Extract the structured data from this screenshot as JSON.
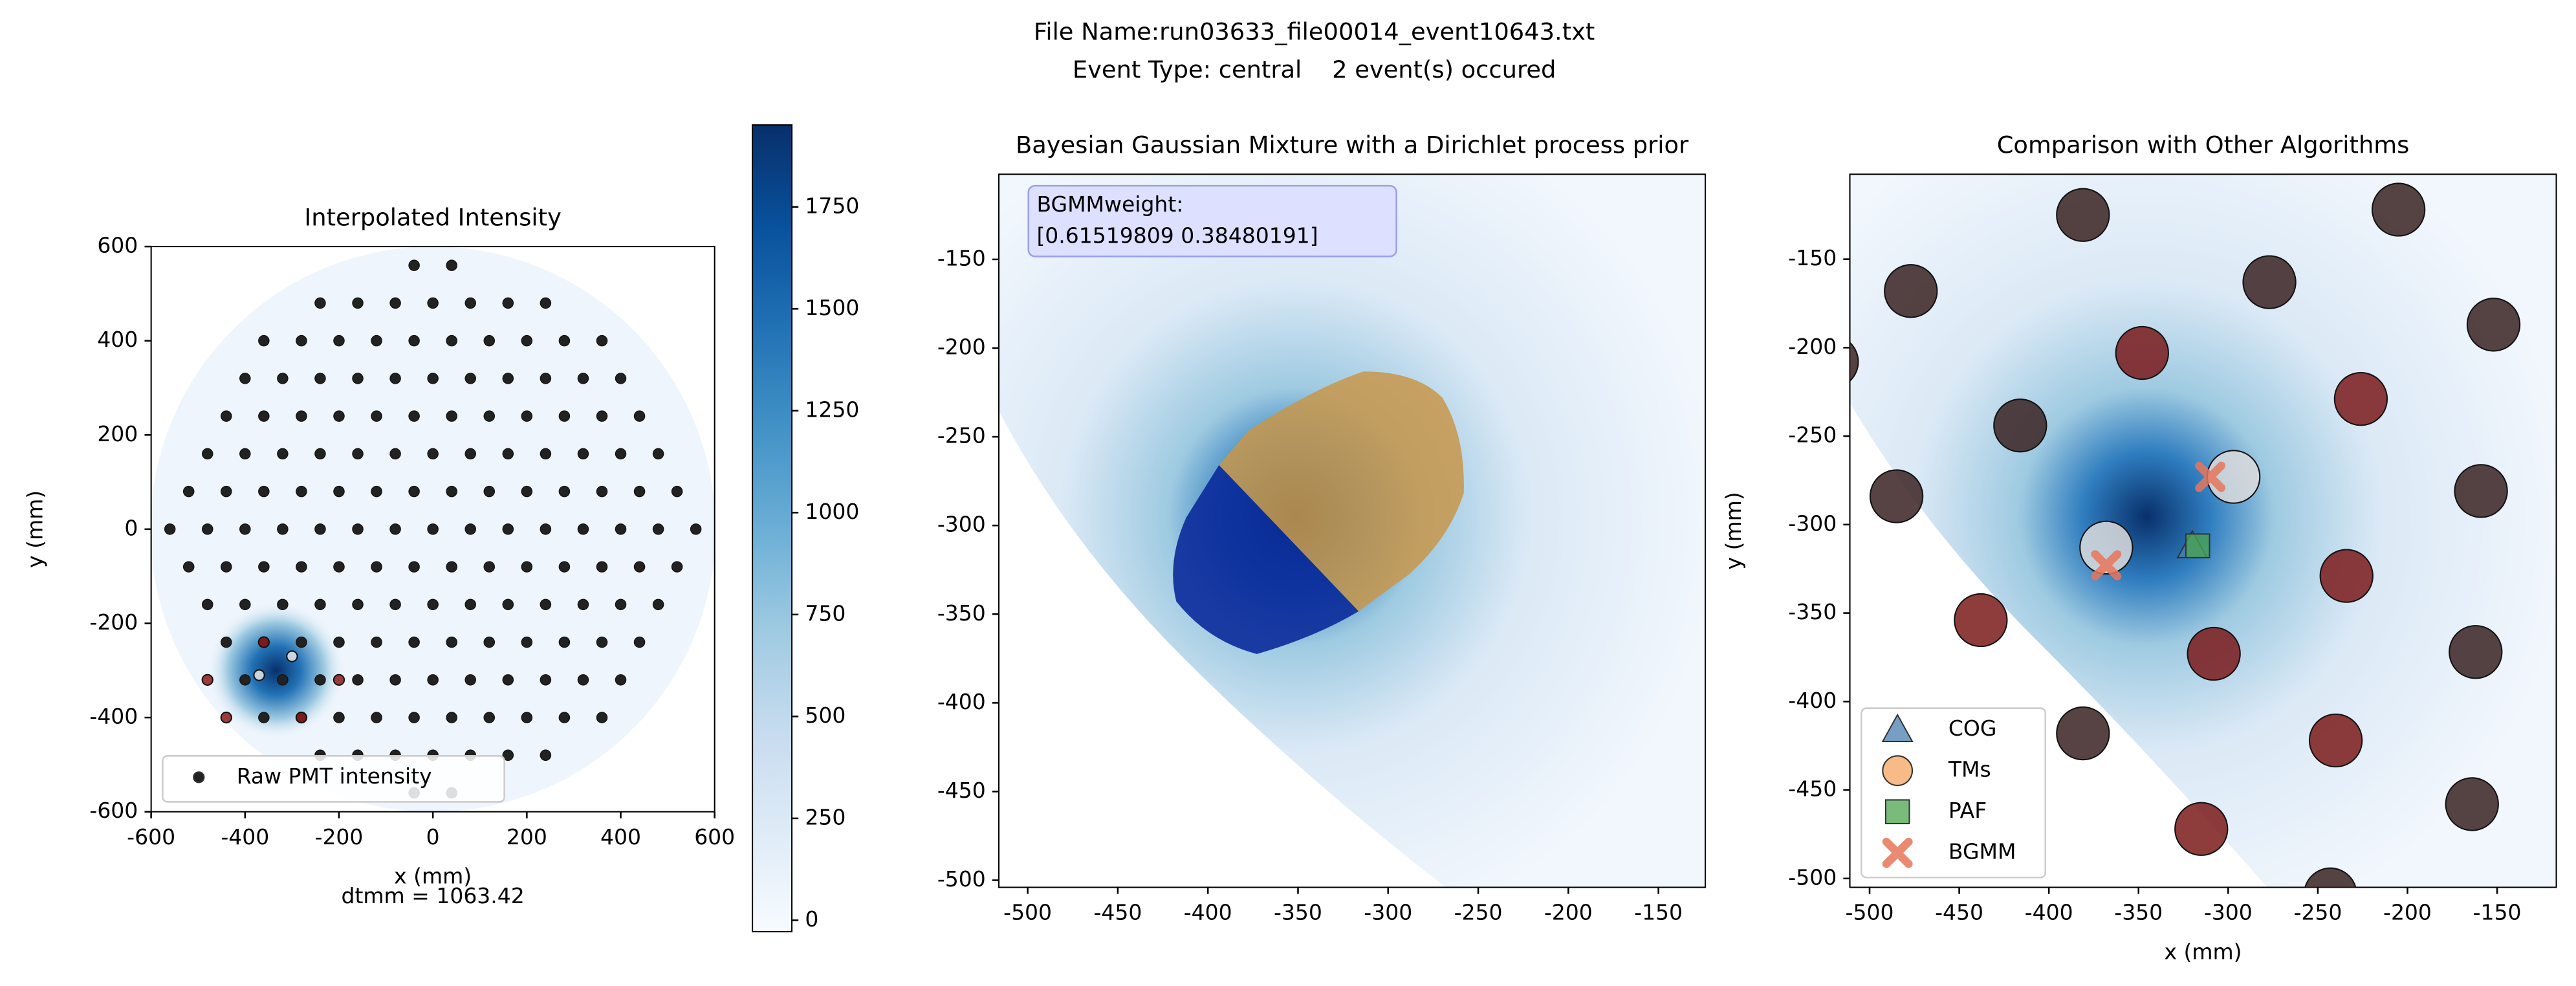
{
  "suptitle": [
    "File Name:run03633_file00014_event10643.txt",
    "Event Type: central    2 event(s) occured"
  ],
  "chart_data": [
    {
      "type": "scatter",
      "title": "Interpolated Intensity",
      "xlabel": "x (mm)",
      "ylabel": "y (mm)",
      "xlim": [
        -600,
        600
      ],
      "ylim": [
        -600,
        600
      ],
      "xticks": [
        -600,
        -400,
        -200,
        0,
        200,
        400,
        600
      ],
      "yticks": [
        -600,
        -400,
        -200,
        0,
        200,
        400,
        600
      ],
      "legend": "lower left",
      "annotation": "dtmm = 1063.42",
      "colorbar": {
        "lim": [
          -28,
          1951
        ],
        "ticks": [
          0,
          250,
          500,
          750,
          1000,
          1250,
          1500,
          1750
        ]
      },
      "series": [
        {
          "name": "Raw PMT intensity",
          "color": "#222222",
          "rows": [
            {
              "y": 560,
              "x": [
                -40,
                40
              ]
            },
            {
              "y": 480,
              "x": [
                -240,
                -160,
                -80,
                0,
                80,
                160,
                240
              ]
            },
            {
              "y": 400,
              "x": [
                -360,
                -280,
                -200,
                -120,
                -40,
                40,
                120,
                200,
                280,
                360
              ]
            },
            {
              "y": 320,
              "x": [
                -400,
                -320,
                -240,
                -160,
                -80,
                0,
                80,
                160,
                240,
                320,
                400
              ]
            },
            {
              "y": 240,
              "x": [
                -440,
                -360,
                -280,
                -200,
                -120,
                -40,
                40,
                120,
                200,
                280,
                360,
                440
              ]
            },
            {
              "y": 160,
              "x": [
                -480,
                -400,
                -320,
                -240,
                -160,
                -80,
                0,
                80,
                160,
                240,
                320,
                400,
                480
              ]
            },
            {
              "y": 80,
              "x": [
                -520,
                -440,
                -360,
                -280,
                -200,
                -120,
                -40,
                40,
                120,
                200,
                280,
                360,
                440,
                520
              ]
            },
            {
              "y": 0,
              "x": [
                -560,
                -480,
                -400,
                -320,
                -240,
                -160,
                -80,
                0,
                80,
                160,
                240,
                320,
                400,
                480,
                560
              ]
            },
            {
              "y": -80,
              "x": [
                -520,
                -440,
                -360,
                -280,
                -200,
                -120,
                -40,
                40,
                120,
                200,
                280,
                360,
                440,
                520
              ]
            },
            {
              "y": -160,
              "x": [
                -480,
                -400,
                -320,
                -240,
                -160,
                -80,
                0,
                80,
                160,
                240,
                320,
                400,
                480
              ]
            },
            {
              "y": -240,
              "x": [
                -440,
                -360,
                -280,
                -200,
                -120,
                -40,
                40,
                120,
                200,
                280,
                360,
                440
              ]
            },
            {
              "y": -320,
              "x": [
                -400,
                -320,
                -240,
                -160,
                -80,
                0,
                80,
                160,
                240,
                320,
                400
              ]
            },
            {
              "y": -400,
              "x": [
                -360,
                -280,
                -200,
                -120,
                -40,
                40,
                120,
                200,
                280,
                360
              ]
            },
            {
              "y": -480,
              "x": [
                -240,
                -160,
                -80,
                0,
                80,
                160,
                240
              ]
            },
            {
              "y": -560,
              "x": [
                -40,
                40
              ]
            }
          ]
        },
        {
          "color": "#8b1a1a",
          "x": [
            -360,
            -480,
            -440,
            -280,
            -200
          ],
          "y": [
            -240,
            -320,
            -400,
            -400,
            -320
          ]
        },
        {
          "color": "#e8e8e8",
          "x": [
            -370,
            -300
          ],
          "y": [
            -310,
            -270
          ]
        }
      ]
    },
    {
      "type": "image",
      "title": "Bayesian Gaussian Mixture with a Dirichlet process prior",
      "annotation": [
        "BGMMweight:",
        "[0.61519809 0.38480191]"
      ],
      "xlim": [
        -516,
        -124
      ],
      "ylim": [
        -504,
        -102
      ],
      "xticks": [
        -500,
        -450,
        -400,
        -350,
        -300,
        -250,
        -200,
        -150
      ],
      "yticks": [
        -500,
        -450,
        -400,
        -350,
        -300,
        -250,
        -200,
        -150
      ]
    },
    {
      "type": "scatter",
      "title": "Comparison with Other Algorithms",
      "xlabel": "x (mm)",
      "ylabel": "y (mm)",
      "xlim": [
        -511,
        -117
      ],
      "ylim": [
        -505,
        -102
      ],
      "xticks": [
        -500,
        -450,
        -400,
        -350,
        -300,
        -250,
        -200,
        -150
      ],
      "yticks": [
        -500,
        -450,
        -400,
        -350,
        -300,
        -250,
        -200,
        -150
      ],
      "legend": "lower left",
      "series": [
        {
          "color": "#3a2222",
          "x": [
            -381,
            -477,
            -277,
            -205,
            -152,
            -521,
            -416,
            -485,
            -159,
            -162,
            -381,
            -164,
            -243
          ],
          "y": [
            -125,
            -168,
            -163,
            -122,
            -187,
            -208,
            -244,
            -284,
            -281,
            -372,
            -418,
            -458,
            -509
          ]
        },
        {
          "color": "#7a1a1a",
          "x": [
            -348,
            -226,
            -234,
            -438,
            -308,
            -240,
            -315
          ],
          "y": [
            -203,
            -229,
            -329,
            -354,
            -373,
            -422,
            -472
          ]
        },
        {
          "color": "#dcdcdc",
          "x": [
            -297,
            -368
          ],
          "y": [
            -273,
            -313
          ]
        },
        {
          "name": "COG",
          "marker": "triangle",
          "color": "#4a7fb0",
          "x": [
            -320
          ],
          "y": [
            -312
          ]
        },
        {
          "name": "TMs",
          "marker": "circle",
          "color": "#f4a460",
          "x": [],
          "y": []
        },
        {
          "name": "PAF",
          "marker": "square",
          "color": "#4ca64c",
          "x": [
            -317
          ],
          "y": [
            -312
          ]
        },
        {
          "name": "BGMM",
          "marker": "x",
          "color": "#e8765a",
          "x": [
            -310,
            -368
          ],
          "y": [
            -273,
            -323
          ]
        }
      ]
    }
  ]
}
